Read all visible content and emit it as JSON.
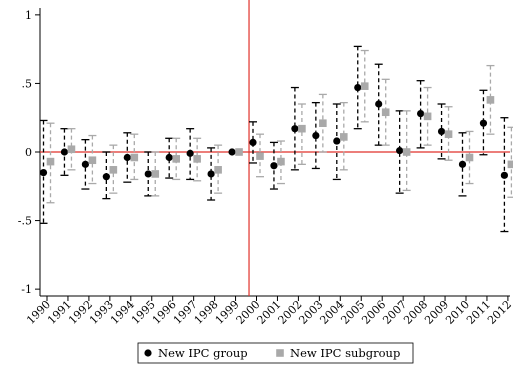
{
  "chart_data": {
    "type": "scatter",
    "categories": [
      "1990",
      "1991",
      "1992",
      "1993",
      "1994",
      "1995",
      "1996",
      "1997",
      "1998",
      "1999",
      "2000",
      "2001",
      "2002",
      "2003",
      "2004",
      "2005",
      "2006",
      "2007",
      "2008",
      "2009",
      "2010",
      "2011",
      "2012"
    ],
    "y_ticks": [
      {
        "value": 1,
        "label": "1"
      },
      {
        "value": 0.5,
        "label": ".5"
      },
      {
        "value": 0,
        "label": "0"
      },
      {
        "value": -0.5,
        "label": "-.5"
      },
      {
        "value": -1,
        "label": "-1"
      }
    ],
    "ylim": [
      -1.05,
      1.05
    ],
    "reference_year": "1999.5",
    "grid": false,
    "legend_position": "bottom",
    "colors": {
      "group": "#000000",
      "subgroup": "#a9a9a9",
      "reference": "#e0322b"
    },
    "series": [
      {
        "name": "New IPC group",
        "marker": "circle",
        "values": [
          -0.15,
          0.0,
          -0.09,
          -0.18,
          -0.04,
          -0.16,
          -0.04,
          -0.01,
          -0.16,
          0.0,
          0.07,
          -0.1,
          0.17,
          0.12,
          0.08,
          0.47,
          0.35,
          0.01,
          0.28,
          0.15,
          -0.09,
          0.21,
          -0.17
        ],
        "ci_low": [
          -0.52,
          -0.17,
          -0.27,
          -0.34,
          -0.22,
          -0.32,
          -0.19,
          -0.2,
          -0.35,
          0.0,
          -0.08,
          -0.27,
          -0.13,
          -0.12,
          -0.2,
          0.17,
          0.05,
          -0.3,
          0.03,
          -0.05,
          -0.32,
          -0.02,
          -0.58
        ],
        "ci_high": [
          0.23,
          0.17,
          0.09,
          0.0,
          0.14,
          0.0,
          0.1,
          0.17,
          0.03,
          0.0,
          0.22,
          0.07,
          0.47,
          0.36,
          0.35,
          0.77,
          0.64,
          0.3,
          0.52,
          0.35,
          0.14,
          0.45,
          0.25
        ]
      },
      {
        "name": "New IPC subgroup",
        "marker": "square",
        "values": [
          -0.07,
          0.02,
          -0.06,
          -0.13,
          -0.04,
          -0.16,
          -0.05,
          -0.05,
          -0.13,
          0.0,
          -0.03,
          -0.07,
          0.17,
          0.21,
          0.11,
          0.48,
          0.29,
          0.0,
          0.26,
          0.13,
          -0.04,
          0.38,
          -0.09
        ],
        "ci_low": [
          -0.37,
          -0.13,
          -0.23,
          -0.3,
          -0.2,
          -0.32,
          -0.2,
          -0.21,
          -0.3,
          0.0,
          -0.18,
          -0.23,
          -0.09,
          0.0,
          -0.13,
          0.22,
          0.05,
          -0.28,
          0.05,
          -0.06,
          -0.23,
          0.13,
          -0.33
        ],
        "ci_high": [
          0.21,
          0.17,
          0.12,
          0.05,
          0.13,
          0.0,
          0.1,
          0.1,
          0.05,
          0.0,
          0.13,
          0.08,
          0.35,
          0.42,
          0.36,
          0.74,
          0.53,
          0.3,
          0.47,
          0.33,
          0.15,
          0.63,
          0.18
        ]
      }
    ],
    "legend": [
      {
        "label": "New IPC group"
      },
      {
        "label": "New IPC subgroup"
      }
    ]
  }
}
